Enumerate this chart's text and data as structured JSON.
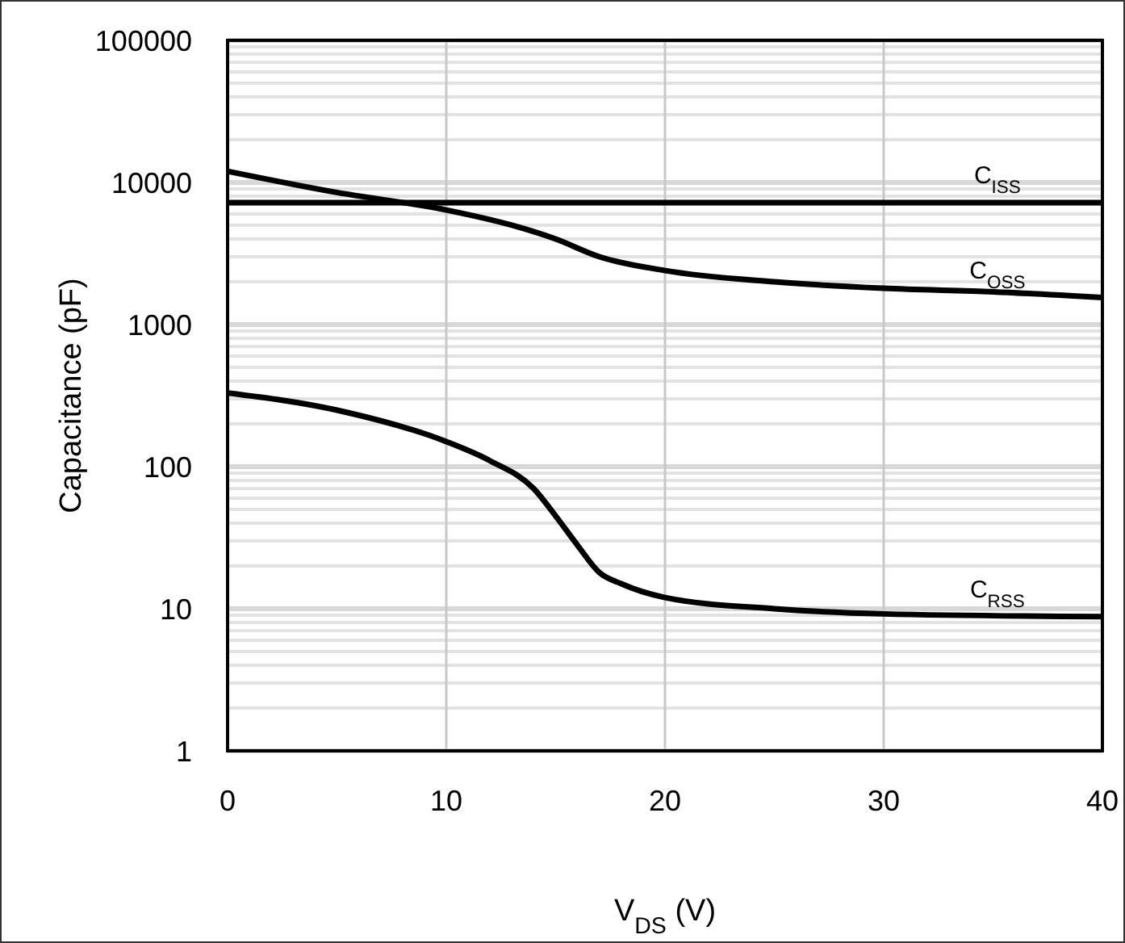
{
  "chart_data": {
    "type": "line",
    "xlabel": "V$_{DS}$ (V)",
    "ylabel": "Capacitance (pF)",
    "log": "y",
    "xlim": [
      0,
      40
    ],
    "xticks": [
      0,
      10,
      20,
      30,
      40
    ],
    "ylim": [
      1,
      100000
    ],
    "yticks": [
      1,
      10,
      100,
      1000,
      10000,
      100000
    ],
    "grid": true,
    "marker": "none",
    "line_style": "solid",
    "series": [
      {
        "name": "C$_{ISS}$",
        "color": "#000000",
        "x": [
          0,
          10,
          20,
          30,
          40
        ],
        "values": [
          7200,
          7200,
          7200,
          7200,
          7200
        ]
      },
      {
        "name": "C$_{OSS}$",
        "color": "#000000",
        "x": [
          0,
          5,
          10,
          13,
          15,
          17,
          20,
          25,
          30,
          35,
          40
        ],
        "values": [
          12000,
          8500,
          6400,
          5000,
          4000,
          3000,
          2400,
          2000,
          1800,
          1700,
          1550
        ]
      },
      {
        "name": "C$_{RSS}$",
        "color": "#000000",
        "x": [
          0,
          5,
          10,
          12,
          14,
          15,
          16,
          17,
          18,
          20,
          25,
          30,
          40
        ],
        "values": [
          330,
          250,
          150,
          110,
          70,
          45,
          28,
          18,
          15,
          12,
          10,
          9.2,
          8.8
        ]
      }
    ]
  }
}
